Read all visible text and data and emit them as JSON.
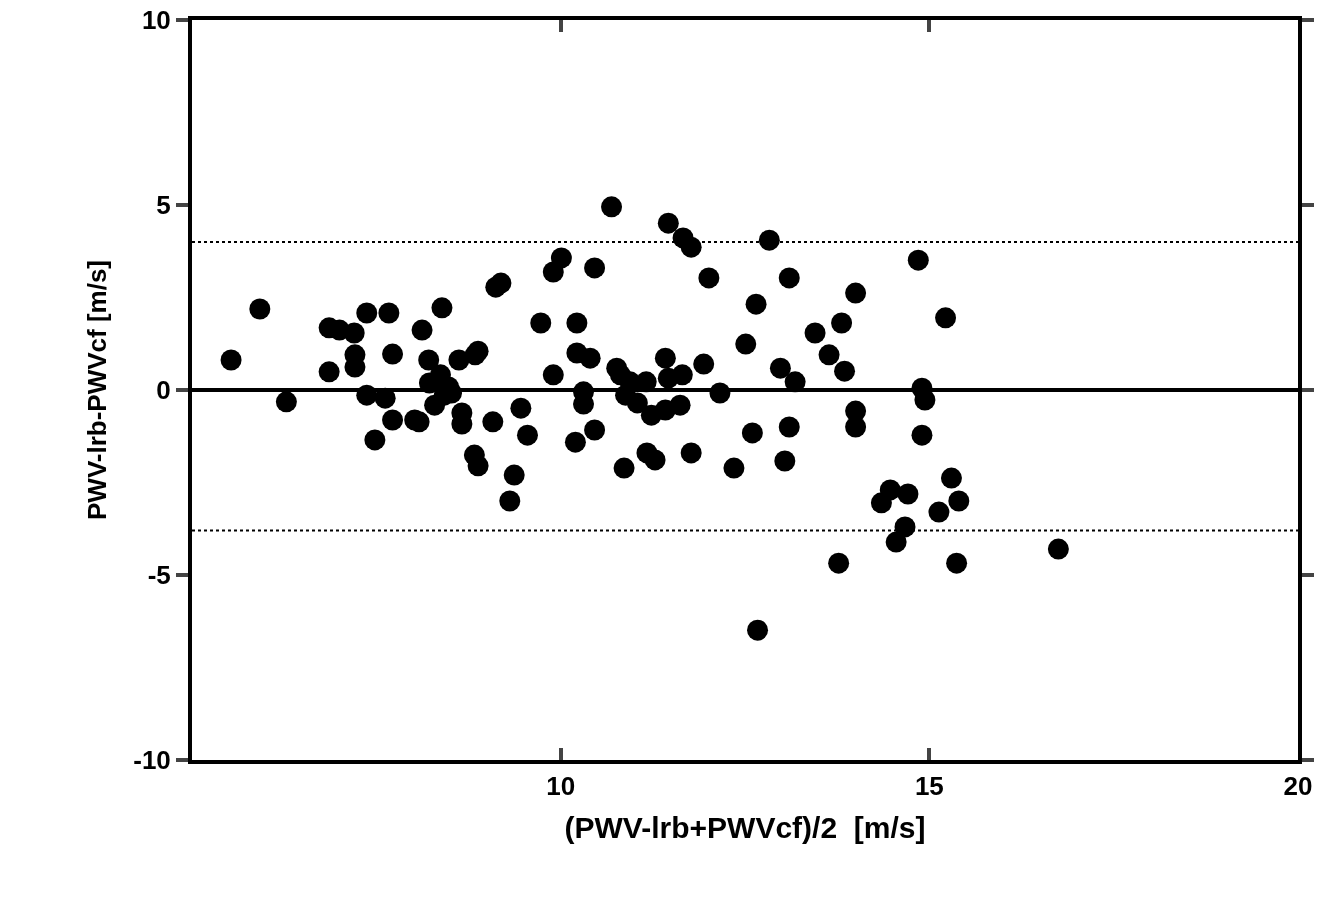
{
  "chart_data": {
    "type": "scatter",
    "xlabel": "(PWV-lrb+PWVcf)/2  [m/s]",
    "ylabel": "PWV-lrb-PWVcf [m/s]",
    "x": [
      5.53,
      5.92,
      6.28,
      6.86,
      6.86,
      7.0,
      7.2,
      7.21,
      7.21,
      7.37,
      7.37,
      7.48,
      7.67,
      7.62,
      7.72,
      7.72,
      8.02,
      8.12,
      8.08,
      8.21,
      8.22,
      8.29,
      8.39,
      8.37,
      8.42,
      8.48,
      8.52,
      8.62,
      8.66,
      8.66,
      8.84,
      8.88,
      8.83,
      8.88,
      9.08,
      9.12,
      9.19,
      9.37,
      9.31,
      9.46,
      9.55,
      9.73,
      9.9,
      9.9,
      10.01,
      10.22,
      10.22,
      10.2,
      10.31,
      10.31,
      10.4,
      10.46,
      10.46,
      10.69,
      10.76,
      10.81,
      10.86,
      10.88,
      10.94,
      11.04,
      11.16,
      11.17,
      11.23,
      11.28,
      11.42,
      11.46,
      11.42,
      11.46,
      11.62,
      11.65,
      11.66,
      11.77,
      11.77,
      11.94,
      12.01,
      12.16,
      12.35,
      12.51,
      12.6,
      12.65,
      12.67,
      12.83,
      12.98,
      13.04,
      13.1,
      13.1,
      13.18,
      13.45,
      13.64,
      13.77,
      13.81,
      13.85,
      14.0,
      14.0,
      14.0,
      14.35,
      14.47,
      14.55,
      14.67,
      14.71,
      14.85,
      14.9,
      14.9,
      14.94,
      15.22,
      15.13,
      15.3,
      15.37,
      15.4,
      16.75
    ],
    "values": [
      0.81,
      2.19,
      -0.32,
      0.49,
      1.68,
      1.62,
      1.54,
      0.95,
      0.62,
      2.08,
      -0.14,
      -1.35,
      2.08,
      -0.22,
      0.97,
      -0.81,
      -0.81,
      1.62,
      -0.86,
      0.81,
      0.19,
      -0.41,
      2.22,
      0.41,
      -0.14,
      0.08,
      -0.08,
      0.81,
      -0.62,
      -0.92,
      0.95,
      1.05,
      -1.76,
      -2.05,
      -0.86,
      2.78,
      2.89,
      -2.3,
      -3.0,
      -0.49,
      -1.22,
      1.81,
      0.41,
      3.19,
      3.57,
      1.81,
      1.0,
      -1.41,
      -0.38,
      -0.05,
      0.86,
      -1.08,
      3.3,
      4.95,
      0.59,
      0.41,
      -2.11,
      -0.14,
      0.22,
      -0.35,
      0.22,
      -1.7,
      -0.68,
      -1.89,
      0.86,
      4.51,
      -0.54,
      0.32,
      -0.41,
      0.41,
      4.11,
      3.86,
      -1.7,
      0.7,
      3.03,
      -0.08,
      -2.11,
      1.24,
      -1.16,
      2.32,
      -6.49,
      4.05,
      0.59,
      -1.92,
      3.03,
      -1.0,
      0.22,
      1.54,
      0.95,
      -4.68,
      1.81,
      0.51,
      2.62,
      -0.57,
      -1.0,
      -3.05,
      -2.7,
      -4.11,
      -3.7,
      -2.81,
      3.51,
      0.05,
      -1.22,
      -0.27,
      1.95,
      -3.3,
      -2.38,
      -4.68,
      -3.0,
      -4.3
    ],
    "color": "#000000",
    "marker": "circle",
    "xlim": [
      5,
      20
    ],
    "xticks": [
      10,
      15,
      20
    ],
    "ylim": [
      -10,
      10
    ],
    "yticks": [
      -10,
      -5,
      0,
      5,
      10
    ],
    "ref_lines": [
      {
        "axis": "y",
        "value": 0,
        "color": "#000000",
        "line_style": "solid"
      },
      {
        "axis": "y",
        "value": 4.0,
        "color": "#000000",
        "line_style": "dotted"
      },
      {
        "axis": "y",
        "value": -3.8,
        "color": "#000000",
        "line_style": "dotted"
      }
    ],
    "tick_labels": "xy"
  }
}
